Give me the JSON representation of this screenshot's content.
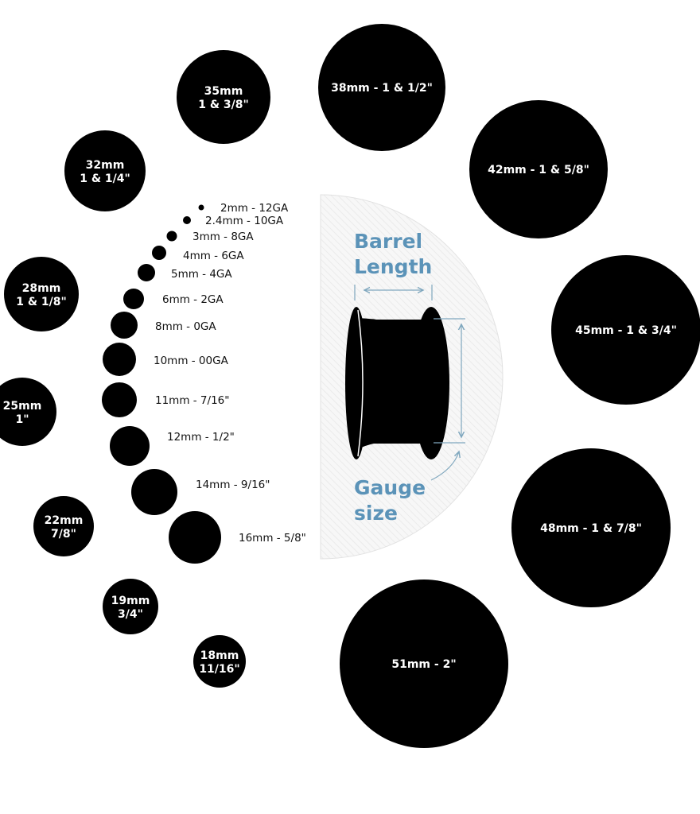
{
  "colors": {
    "circle": "#000000",
    "accent": "#5b93b8",
    "panel": "#f4f4f4",
    "background": "#ffffff"
  },
  "large_sizes": [
    {
      "line1": "35mm",
      "line2": "1 & 3/8\""
    },
    {
      "line1": "38mm - 1 & 1/2\"",
      "line2": ""
    },
    {
      "line1": "42mm - 1 & 5/8\"",
      "line2": ""
    },
    {
      "line1": "45mm - 1 & 3/4\"",
      "line2": ""
    },
    {
      "line1": "48mm - 1 & 7/8\"",
      "line2": ""
    },
    {
      "line1": "51mm - 2\"",
      "line2": ""
    },
    {
      "line1": "32mm",
      "line2": "1 & 1/4\""
    },
    {
      "line1": "28mm",
      "line2": "1 & 1/8\""
    },
    {
      "line1": "25mm",
      "line2": "1\""
    },
    {
      "line1": "22mm",
      "line2": "7/8\""
    },
    {
      "line1": "19mm",
      "line2": "3/4\""
    },
    {
      "line1": "18mm",
      "line2": "11/16\""
    }
  ],
  "small_sizes": [
    "2mm - 12GA",
    "2.4mm - 10GA",
    "3mm - 8GA",
    "4mm - 6GA",
    "5mm - 4GA",
    "6mm - 2GA",
    "8mm - 0GA",
    "10mm - 00GA",
    "11mm - 7/16\"",
    "12mm - 1/2\"",
    "14mm - 9/16\"",
    "16mm - 5/8\""
  ],
  "diagram": {
    "barrel_line1": "Barrel",
    "barrel_line2": "Length",
    "gauge_line1": "Gauge",
    "gauge_line2": "size"
  }
}
